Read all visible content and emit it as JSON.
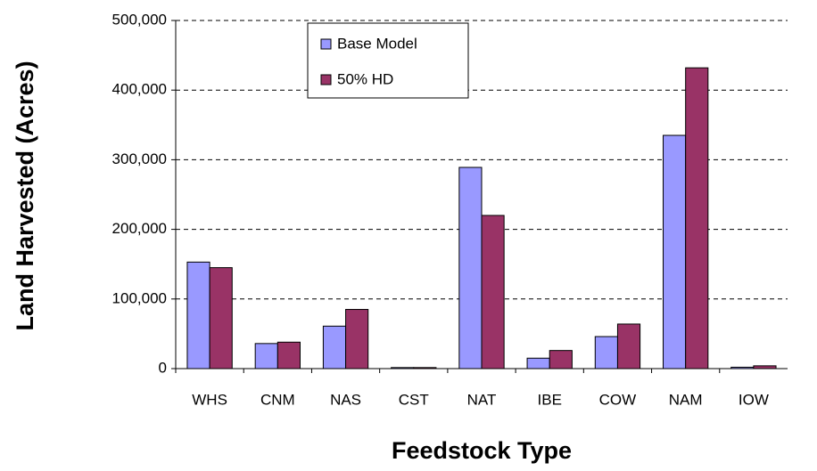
{
  "chart_data": {
    "type": "bar",
    "categories": [
      "WHS",
      "CNM",
      "NAS",
      "CST",
      "NAT",
      "IBE",
      "COW",
      "NAM",
      "IOW"
    ],
    "series": [
      {
        "name": "Base Model",
        "color": "#9999ff",
        "values": [
          153000,
          36000,
          61000,
          1500,
          289000,
          15000,
          46000,
          335000,
          2000
        ]
      },
      {
        "name": "50% HD",
        "color": "#993366",
        "values": [
          145000,
          38000,
          85000,
          1500,
          220000,
          26000,
          64000,
          432000,
          4000
        ]
      }
    ],
    "ylim": [
      0,
      500000
    ],
    "yticks": [
      0,
      {
        "value": 100000,
        "label": "100,000"
      },
      {
        "value": 200000,
        "label": "200,000"
      },
      {
        "value": 300000,
        "label": "300,000"
      },
      {
        "value": 400000,
        "label": "400,000"
      },
      {
        "value": 500000,
        "label": "500,000"
      }
    ],
    "grid": true,
    "xlabel": "Feedstock Type",
    "ylabel": "Land Harvested (Acres)",
    "legend": "top"
  }
}
